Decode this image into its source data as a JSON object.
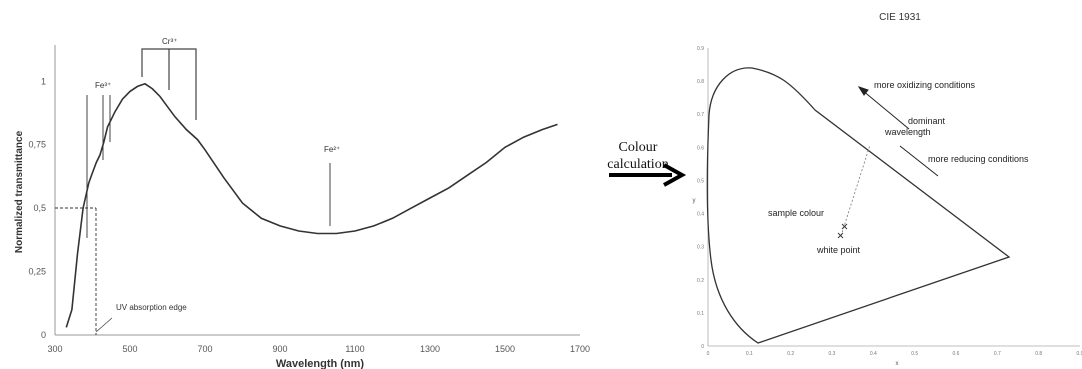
{
  "left_chart": {
    "ylabel": "Normalized transmittance",
    "xlabel": "Wavelength (nm)",
    "x_ticks": [
      "300",
      "500",
      "700",
      "900",
      "1100",
      "1300",
      "1500",
      "1700"
    ],
    "y_ticks": [
      "0",
      "0,25",
      "0,5",
      "0,75",
      "1"
    ],
    "annotations": {
      "cr": "Cr³⁺",
      "fe_left": "Fe³⁺",
      "fe_right": "Fe²⁺",
      "uv_edge": "UV absorption edge"
    }
  },
  "arrow": {
    "line1": "Colour",
    "line2": "calculation"
  },
  "cie": {
    "title": "CIE 1931",
    "xlabel": "x",
    "ylabel": "y",
    "x_ticks": [
      "0",
      "0.1",
      "0.2",
      "0.3",
      "0.4",
      "0.5",
      "0.6",
      "0.7",
      "0.8",
      "0.9"
    ],
    "y_ticks": [
      "0",
      "0.1",
      "0.2",
      "0.3",
      "0.4",
      "0.5",
      "0.6",
      "0.7",
      "0.8",
      "0.9"
    ],
    "labels": {
      "oxidizing": "more oxidizing conditions",
      "reducing": "more reducing conditions",
      "dominant_1": "dominant",
      "dominant_2": "wavelength",
      "sample": "sample colour",
      "white": "white point"
    }
  },
  "chart_data": {
    "type": "line",
    "xlabel": "Wavelength (nm)",
    "ylabel": "Normalized transmittance",
    "xlim": [
      300,
      1700
    ],
    "ylim": [
      0,
      1.1
    ],
    "x": [
      330,
      345,
      360,
      375,
      390,
      400,
      410,
      420,
      430,
      440,
      460,
      480,
      500,
      520,
      540,
      560,
      580,
      600,
      620,
      650,
      680,
      700,
      750,
      800,
      850,
      900,
      950,
      1000,
      1050,
      1100,
      1150,
      1200,
      1250,
      1300,
      1350,
      1400,
      1450,
      1500,
      1550,
      1600,
      1640
    ],
    "y": [
      0.03,
      0.1,
      0.32,
      0.5,
      0.6,
      0.64,
      0.68,
      0.71,
      0.76,
      0.82,
      0.88,
      0.93,
      0.96,
      0.98,
      0.99,
      0.97,
      0.94,
      0.9,
      0.86,
      0.81,
      0.77,
      0.73,
      0.62,
      0.52,
      0.46,
      0.43,
      0.41,
      0.4,
      0.4,
      0.41,
      0.43,
      0.46,
      0.5,
      0.54,
      0.58,
      0.63,
      0.68,
      0.74,
      0.78,
      0.81,
      0.83
    ]
  }
}
